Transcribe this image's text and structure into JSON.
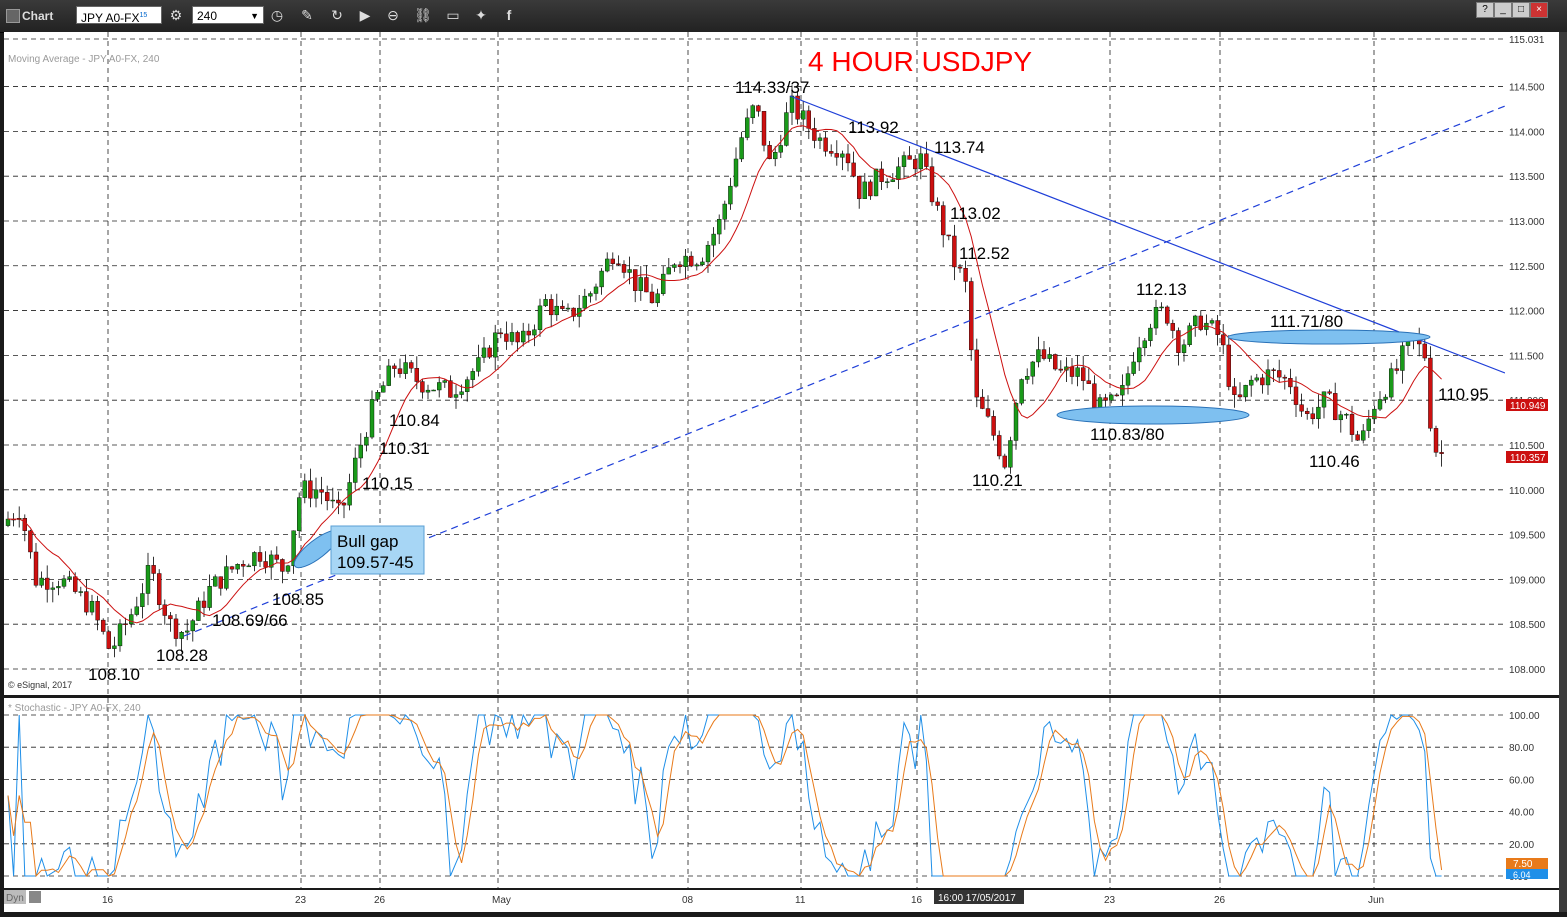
{
  "toolbar": {
    "title": "Chart",
    "symbol": "JPY A0-FX",
    "symbol_superscript": "15",
    "interval": "240",
    "window_buttons": [
      "?",
      "_",
      "□",
      "×"
    ]
  },
  "main_chart": {
    "indicator_label": "Moving Average - JPY A0-FX, 240",
    "copyright": "© eSignal, 2017",
    "title": "4 HOUR USDJPY",
    "title_color": "#ff0000",
    "colors": {
      "bull": "#1a9a1a",
      "bear": "#cc1010",
      "ma": "#cc1010",
      "trendline": "#1f3fd8",
      "ellipse": "#7ec0f0"
    },
    "price_labels": [
      "115.031",
      "114.500",
      "114.000",
      "113.500",
      "113.000",
      "112.500",
      "112.000",
      "111.500",
      "111.000",
      "110.500",
      "110.000",
      "109.500",
      "109.000",
      "108.500",
      "108.000"
    ],
    "current_price_label": "110.357",
    "ma_value_label": "110.949",
    "annotations": {
      "a_114_33": "114.33/37",
      "a_113_92": "113.92",
      "a_113_74": "113.74",
      "a_113_02": "113.02",
      "a_112_52": "112.52",
      "a_112_13": "112.13",
      "a_111_71": "111.71/80",
      "a_110_95": "110.95",
      "a_110_83": "110.83/80",
      "a_110_46": "110.46",
      "a_110_21": "110.21",
      "a_110_84": "110.84",
      "a_110_31": "110.31",
      "a_110_15": "110.15",
      "a_108_85": "108.85",
      "a_108_69": "108.69/66",
      "a_108_28": "108.28",
      "a_108_10": "108.10",
      "gap_line1": "Bull gap",
      "gap_line2": "109.57-45"
    }
  },
  "stoch_chart": {
    "indicator_label": "* Stochastic - JPY A0-FX, 240",
    "colors": {
      "k": "#1f8fe8",
      "d": "#e87a1a"
    },
    "axis_labels": [
      "100.00",
      "80.00",
      "60.00",
      "40.00",
      "20.00",
      "0.00"
    ],
    "k_value_label": "7.50",
    "d_value_label": "6.04"
  },
  "time_axis": {
    "labels": [
      "16",
      "23",
      "26",
      "May",
      "08",
      "11",
      "16",
      "23",
      "26",
      "Jun"
    ],
    "cursor_label": "16:00 17/05/2017",
    "dyn_label": "Dyn"
  },
  "chart_data": {
    "type": "line",
    "title": "4 HOUR USDJPY",
    "ylabel": "",
    "xlabel": "",
    "ylim": [
      107.75,
      115.031
    ],
    "x_ticks": [
      "16",
      "23",
      "26",
      "May",
      "08",
      "11",
      "16",
      "23",
      "26",
      "Jun"
    ],
    "series": [
      {
        "name": "",
        "x": [
          "16",
          "23",
          "26",
          "May",
          "08",
          "11",
          "16",
          "23",
          "26",
          "Jun"
        ],
        "values": [
          108.7,
          109.1,
          110.9,
          111.2,
          112.8,
          114.3,
          113.4,
          110.9,
          111.5,
          110.4
        ]
      }
    ],
    "key_levels": [
      108.1,
      108.28,
      108.66,
      108.85,
      109.45,
      109.57,
      110.15,
      110.21,
      110.31,
      110.46,
      110.8,
      110.83,
      110.84,
      110.95,
      111.71,
      111.8,
      112.13,
      112.52,
      113.02,
      113.74,
      113.92,
      114.33,
      114.37
    ],
    "stochastic": {
      "ylim": [
        0,
        100
      ],
      "last_k": 7.5,
      "last_d": 6.04
    },
    "grid": true
  }
}
